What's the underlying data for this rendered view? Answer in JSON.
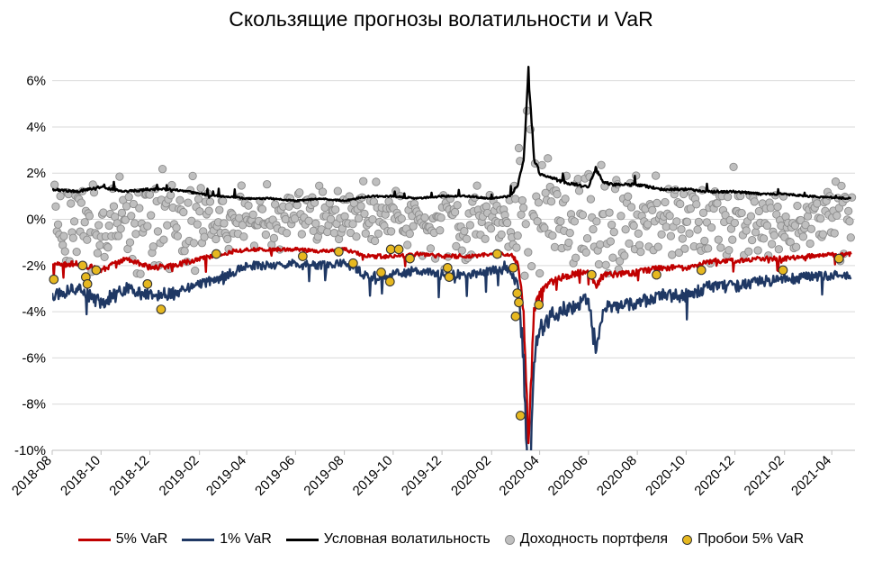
{
  "chart_data": {
    "type": "line",
    "title": "Скользящие прогнозы волатильности и VaR",
    "xlabel": "",
    "ylabel": "",
    "x_range": [
      "2018-08-01",
      "2021-04-30"
    ],
    "ylim": [
      -10,
      7
    ],
    "y_ticks": [
      6,
      4,
      2,
      0,
      -2,
      -4,
      -6,
      -8,
      -10
    ],
    "y_tick_labels": [
      "6%",
      "4%",
      "2%",
      "0%",
      "-2%",
      "-4%",
      "-6%",
      "-8%",
      "-10%"
    ],
    "x_ticks": [
      "2018-08",
      "2018-10",
      "2018-12",
      "2019-02",
      "2019-04",
      "2019-06",
      "2019-08",
      "2019-10",
      "2019-12",
      "2020-02",
      "2020-04",
      "2020-06",
      "2020-08",
      "2020-10",
      "2020-12",
      "2021-02",
      "2021-04"
    ],
    "grid": "horizontal",
    "legend_position": "bottom",
    "series": [
      {
        "name": "5% VaR",
        "color": "#C00000",
        "style": "line",
        "x": [
          "2018-08-01",
          "2018-09-01",
          "2018-10-01",
          "2018-11-01",
          "2018-12-01",
          "2019-01-01",
          "2019-02-01",
          "2019-03-01",
          "2019-04-01",
          "2019-05-01",
          "2019-06-01",
          "2019-07-01",
          "2019-08-01",
          "2019-09-01",
          "2019-10-01",
          "2019-11-01",
          "2019-12-01",
          "2020-01-01",
          "2020-02-01",
          "2020-02-24",
          "2020-03-05",
          "2020-03-12",
          "2020-03-18",
          "2020-03-25",
          "2020-04-01",
          "2020-04-15",
          "2020-05-01",
          "2020-06-01",
          "2020-06-10",
          "2020-06-20",
          "2020-07-01",
          "2020-08-01",
          "2020-09-01",
          "2020-10-01",
          "2020-11-01",
          "2020-12-01",
          "2021-01-01",
          "2021-02-01",
          "2021-03-01",
          "2021-04-25"
        ],
        "y": [
          -2.0,
          -1.9,
          -2.2,
          -1.7,
          -2.1,
          -2.0,
          -1.7,
          -1.5,
          -1.3,
          -1.3,
          -1.3,
          -1.4,
          -1.3,
          -1.6,
          -1.6,
          -1.5,
          -1.6,
          -1.6,
          -1.5,
          -1.5,
          -1.9,
          -4.0,
          -9.8,
          -4.0,
          -3.2,
          -2.7,
          -2.5,
          -2.2,
          -2.9,
          -2.4,
          -2.4,
          -2.3,
          -2.1,
          -2.1,
          -1.8,
          -1.8,
          -1.7,
          -1.7,
          -1.6,
          -1.5
        ]
      },
      {
        "name": "1% VaR",
        "color": "#1F3864",
        "style": "line",
        "x": [
          "2018-08-01",
          "2018-09-01",
          "2018-10-01",
          "2018-11-01",
          "2018-12-01",
          "2019-01-01",
          "2019-02-01",
          "2019-03-01",
          "2019-04-01",
          "2019-05-01",
          "2019-06-01",
          "2019-07-01",
          "2019-08-01",
          "2019-09-01",
          "2019-10-01",
          "2019-11-01",
          "2019-12-01",
          "2020-01-01",
          "2020-02-01",
          "2020-02-24",
          "2020-03-05",
          "2020-03-12",
          "2020-03-18",
          "2020-03-25",
          "2020-04-01",
          "2020-04-15",
          "2020-05-01",
          "2020-06-01",
          "2020-06-10",
          "2020-06-20",
          "2020-07-01",
          "2020-08-01",
          "2020-09-01",
          "2020-10-01",
          "2020-11-01",
          "2020-12-01",
          "2021-01-01",
          "2021-02-01",
          "2021-03-01",
          "2021-04-25"
        ],
        "y": [
          -3.3,
          -3.0,
          -3.6,
          -3.0,
          -3.3,
          -3.2,
          -2.8,
          -2.5,
          -2.0,
          -2.0,
          -1.9,
          -2.0,
          -1.9,
          -2.5,
          -2.4,
          -2.2,
          -2.4,
          -2.4,
          -2.2,
          -2.2,
          -3.0,
          -6.0,
          -13.0,
          -6.0,
          -4.8,
          -4.2,
          -3.9,
          -3.5,
          -5.5,
          -3.8,
          -3.8,
          -3.6,
          -3.3,
          -3.3,
          -2.9,
          -2.9,
          -2.7,
          -2.6,
          -2.5,
          -2.4
        ]
      },
      {
        "name": "Условная волатильность",
        "color": "#000000",
        "style": "line",
        "x": [
          "2018-08-01",
          "2018-09-01",
          "2018-10-01",
          "2018-11-01",
          "2018-12-01",
          "2019-01-01",
          "2019-02-01",
          "2019-03-01",
          "2019-04-01",
          "2019-05-01",
          "2019-06-01",
          "2019-07-01",
          "2019-08-01",
          "2019-09-01",
          "2019-10-01",
          "2019-11-01",
          "2019-12-01",
          "2020-01-01",
          "2020-02-01",
          "2020-02-24",
          "2020-03-05",
          "2020-03-12",
          "2020-03-18",
          "2020-03-25",
          "2020-04-01",
          "2020-04-15",
          "2020-05-01",
          "2020-06-01",
          "2020-06-10",
          "2020-06-20",
          "2020-07-01",
          "2020-08-01",
          "2020-09-01",
          "2020-10-01",
          "2020-11-01",
          "2020-12-01",
          "2021-01-01",
          "2021-02-01",
          "2021-03-01",
          "2021-04-25"
        ],
        "y": [
          1.3,
          1.2,
          1.4,
          1.2,
          1.3,
          1.3,
          1.1,
          1.0,
          0.9,
          0.9,
          0.8,
          0.9,
          0.8,
          1.0,
          1.0,
          0.9,
          1.0,
          1.0,
          0.9,
          1.0,
          1.5,
          2.6,
          6.4,
          2.6,
          2.0,
          1.8,
          1.6,
          1.4,
          2.2,
          1.6,
          1.5,
          1.5,
          1.3,
          1.3,
          1.2,
          1.2,
          1.1,
          1.1,
          1.0,
          0.9
        ]
      },
      {
        "name": "Доходность портфеля",
        "color": "#BFBFBF",
        "style": "scatter",
        "x": [],
        "y": []
      },
      {
        "name": "Пробои 5% VaR",
        "color": "#E6B820",
        "style": "scatter",
        "x": [
          "2018-08-03",
          "2018-09-08",
          "2018-09-12",
          "2018-09-14",
          "2018-09-25",
          "2018-11-28",
          "2018-12-15",
          "2019-02-22",
          "2019-06-10",
          "2019-07-25",
          "2019-08-12",
          "2019-09-16",
          "2019-09-27",
          "2019-09-28",
          "2019-10-08",
          "2019-10-22",
          "2019-12-08",
          "2019-12-10",
          "2020-02-08",
          "2020-02-28",
          "2020-03-02",
          "2020-03-04",
          "2020-03-06",
          "2020-03-08",
          "2020-03-31",
          "2020-06-05",
          "2020-08-25",
          "2020-10-20",
          "2021-01-30",
          "2021-04-10"
        ],
        "y": [
          -2.6,
          -2.0,
          -2.5,
          -2.8,
          -2.2,
          -2.8,
          -3.9,
          -1.5,
          -1.6,
          -1.4,
          -1.9,
          -2.3,
          -2.7,
          -1.3,
          -1.3,
          -1.7,
          -2.1,
          -2.5,
          -1.5,
          -2.1,
          -4.2,
          -3.2,
          -3.6,
          -8.5,
          -3.7,
          -2.4,
          -2.4,
          -2.2,
          -2.2,
          -1.7
        ]
      }
    ]
  },
  "legend": {
    "var5": "5% VaR",
    "var1": "1% VaR",
    "vol": "Условная волатильность",
    "returns": "Доходность портфеля",
    "breach": "Пробои 5% VaR"
  }
}
